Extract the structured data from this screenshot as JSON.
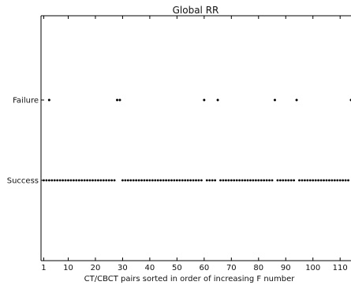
{
  "chart_data": {
    "type": "scatter",
    "title": "Global RR",
    "xlabel": "CT/CBCT pairs sorted in order of increasing F number",
    "ylabel": "",
    "xlim": [
      0,
      114
    ],
    "xticks": [
      1,
      10,
      20,
      30,
      40,
      50,
      60,
      70,
      80,
      90,
      100,
      110
    ],
    "y_categories": [
      "Success",
      "Failure"
    ],
    "grid": false,
    "marker_color": "#000000",
    "failure_x": [
      3,
      28,
      29,
      60,
      65,
      86,
      94,
      114
    ],
    "success_ranges": [
      [
        1,
        27
      ],
      [
        30,
        59
      ],
      [
        61,
        64
      ],
      [
        66,
        85
      ],
      [
        87,
        93
      ],
      [
        95,
        113
      ]
    ]
  }
}
